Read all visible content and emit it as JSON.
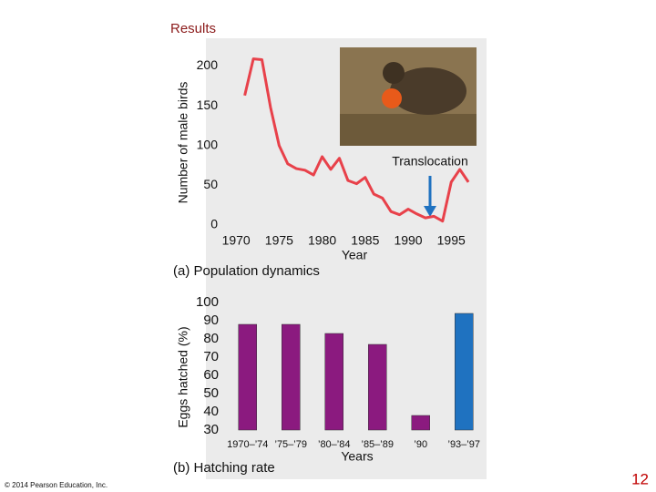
{
  "header": {
    "title": "Results"
  },
  "chart_data": [
    {
      "type": "line",
      "caption": "(a) Population dynamics",
      "x_label": "Year",
      "y_label": "Number of male birds",
      "annotation": "Translocation",
      "x": [
        1971,
        1972,
        1973,
        1974,
        1975,
        1976,
        1977,
        1978,
        1979,
        1980,
        1981,
        1982,
        1983,
        1984,
        1985,
        1986,
        1987,
        1988,
        1989,
        1990,
        1991,
        1992,
        1993,
        1994,
        1995,
        1996,
        1997
      ],
      "series": [
        {
          "color": "#e8414a",
          "values": [
            163,
            209,
            208,
            148,
            100,
            77,
            71,
            69,
            63,
            86,
            70,
            84,
            56,
            52,
            60,
            39,
            34,
            17,
            13,
            20,
            14,
            9,
            11,
            5,
            54,
            70,
            54
          ]
        }
      ],
      "xlim": [
        1968.5,
        1999
      ],
      "xticks": [
        1970,
        1975,
        1980,
        1985,
        1990,
        1995
      ],
      "ylim": [
        0,
        235
      ],
      "yticks": [
        0,
        50,
        100,
        150,
        200
      ]
    },
    {
      "type": "bar",
      "caption": "(b) Hatching rate",
      "x_label": "Years",
      "y_label": "Eggs hatched (%)",
      "categories": [
        "1970–’74",
        "’75–’79",
        "’80–’84",
        "’85–’89",
        "’90",
        "’93–’97"
      ],
      "values": [
        88,
        88,
        83,
        77,
        38,
        94
      ],
      "colors": [
        "#8b1a7f",
        "#8b1a7f",
        "#8b1a7f",
        "#8b1a7f",
        "#8b1a7f",
        "#1f72c0"
      ],
      "ylim": [
        30,
        100
      ],
      "yticks": [
        30,
        40,
        50,
        60,
        70,
        80,
        90,
        100
      ]
    }
  ],
  "footer": {
    "copyright": "© 2014 Pearson Education, Inc.",
    "page": "12"
  }
}
